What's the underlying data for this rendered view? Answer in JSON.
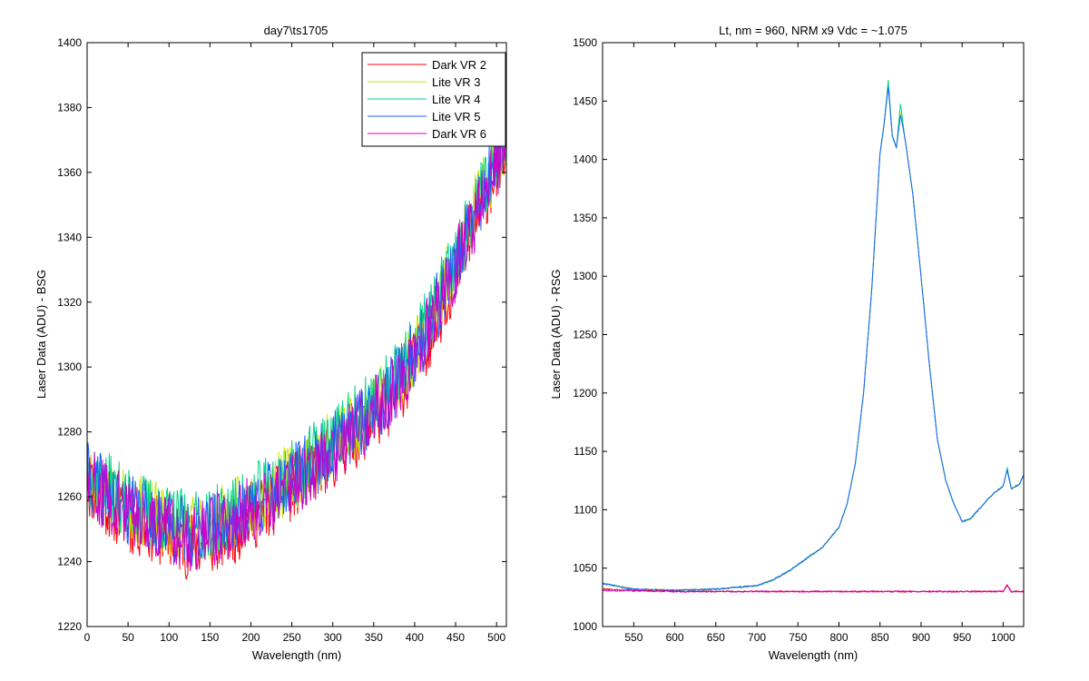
{
  "chart_data": [
    {
      "type": "line",
      "title": "day7\\ts1705",
      "xlabel": "Wavelength (nm)",
      "ylabel": "Laser Data (ADU) - BSG",
      "xlim": [
        0,
        512
      ],
      "ylim": [
        1220,
        1400
      ],
      "xticks": [
        0,
        50,
        100,
        150,
        200,
        250,
        300,
        350,
        400,
        450,
        500
      ],
      "yticks": [
        1220,
        1240,
        1260,
        1280,
        1300,
        1320,
        1340,
        1360,
        1380,
        1400
      ],
      "grid": false,
      "legend_position": "top-right",
      "series": [
        {
          "name": "Dark VR 2",
          "color": "#ff0000",
          "x": [
            0,
            25,
            50,
            75,
            100,
            125,
            150,
            175,
            200,
            225,
            250,
            275,
            300,
            325,
            350,
            375,
            400,
            425,
            450,
            475,
            500,
            512
          ],
          "y": [
            1264,
            1258,
            1253,
            1251,
            1248,
            1245,
            1246,
            1249,
            1254,
            1258,
            1263,
            1268,
            1273,
            1279,
            1284,
            1291,
            1301,
            1314,
            1329,
            1346,
            1362,
            1370
          ]
        },
        {
          "name": "Lite VR 3",
          "color": "#c8e600",
          "x": [
            0,
            25,
            50,
            75,
            100,
            125,
            150,
            175,
            200,
            225,
            250,
            275,
            300,
            325,
            350,
            375,
            400,
            425,
            450,
            475,
            500,
            512
          ],
          "y": [
            1267,
            1262,
            1257,
            1255,
            1252,
            1250,
            1251,
            1254,
            1258,
            1262,
            1266,
            1271,
            1276,
            1282,
            1288,
            1295,
            1305,
            1318,
            1333,
            1349,
            1364,
            1372
          ]
        },
        {
          "name": "Lite VR 4",
          "color": "#00d38a",
          "x": [
            0,
            25,
            50,
            75,
            100,
            125,
            150,
            175,
            200,
            225,
            250,
            275,
            300,
            325,
            350,
            375,
            400,
            425,
            450,
            475,
            500,
            512
          ],
          "y": [
            1268,
            1263,
            1258,
            1256,
            1253,
            1251,
            1252,
            1255,
            1259,
            1263,
            1267,
            1272,
            1277,
            1283,
            1289,
            1296,
            1306,
            1319,
            1334,
            1350,
            1365,
            1373
          ]
        },
        {
          "name": "Lite VR 5",
          "color": "#1e5fff",
          "x": [
            0,
            25,
            50,
            75,
            100,
            125,
            150,
            175,
            200,
            225,
            250,
            275,
            300,
            325,
            350,
            375,
            400,
            425,
            450,
            475,
            500,
            512
          ],
          "y": [
            1266,
            1261,
            1256,
            1254,
            1251,
            1249,
            1250,
            1253,
            1257,
            1261,
            1265,
            1270,
            1275,
            1281,
            1287,
            1294,
            1304,
            1317,
            1332,
            1348,
            1363,
            1371
          ]
        },
        {
          "name": "Dark VR 6",
          "color": "#cc00cc",
          "x": [
            0,
            25,
            50,
            75,
            100,
            125,
            150,
            175,
            200,
            225,
            250,
            275,
            300,
            325,
            350,
            375,
            400,
            425,
            450,
            475,
            500,
            512
          ],
          "y": [
            1265,
            1260,
            1255,
            1253,
            1250,
            1248,
            1249,
            1252,
            1256,
            1260,
            1264,
            1269,
            1274,
            1280,
            1286,
            1293,
            1303,
            1316,
            1331,
            1347,
            1362,
            1370
          ]
        }
      ]
    },
    {
      "type": "line",
      "title": "Lt, nm = 960, NRM x9 Vdc = ~1.075",
      "xlabel": "Wavelength (nm)",
      "ylabel": "Laser Data (ADU) - RSG",
      "xlim": [
        512,
        1025
      ],
      "ylim": [
        1000,
        1500
      ],
      "xticks": [
        550,
        600,
        650,
        700,
        750,
        800,
        850,
        900,
        950,
        1000
      ],
      "yticks": [
        1000,
        1050,
        1100,
        1150,
        1200,
        1250,
        1300,
        1350,
        1400,
        1450,
        1500
      ],
      "grid": false,
      "series": [
        {
          "color": "#c8e600",
          "x": [
            512,
            550,
            600,
            650,
            700,
            720,
            740,
            760,
            780,
            800,
            810,
            820,
            830,
            840,
            850,
            855,
            860,
            865,
            870,
            875,
            880,
            890,
            900,
            910,
            920,
            930,
            940,
            950,
            960,
            970,
            980,
            990,
            1000,
            1005,
            1010,
            1020,
            1025
          ],
          "y": [
            1037,
            1032,
            1031,
            1032,
            1035,
            1040,
            1048,
            1058,
            1068,
            1085,
            1105,
            1140,
            1200,
            1290,
            1405,
            1430,
            1465,
            1420,
            1410,
            1440,
            1420,
            1370,
            1300,
            1225,
            1160,
            1125,
            1105,
            1090,
            1092,
            1100,
            1108,
            1115,
            1120,
            1135,
            1118,
            1122,
            1130
          ]
        },
        {
          "color": "#00d38a",
          "x": [
            512,
            550,
            600,
            650,
            700,
            720,
            740,
            760,
            780,
            800,
            810,
            820,
            830,
            840,
            850,
            855,
            860,
            865,
            870,
            875,
            880,
            890,
            900,
            910,
            920,
            930,
            940,
            950,
            960,
            970,
            980,
            990,
            1000,
            1005,
            1010,
            1020,
            1025
          ],
          "y": [
            1037,
            1032,
            1031,
            1032,
            1035,
            1040,
            1048,
            1058,
            1068,
            1085,
            1105,
            1140,
            1200,
            1290,
            1405,
            1430,
            1468,
            1420,
            1410,
            1448,
            1420,
            1370,
            1300,
            1225,
            1160,
            1125,
            1105,
            1090,
            1092,
            1100,
            1108,
            1115,
            1120,
            1136,
            1118,
            1122,
            1130
          ]
        },
        {
          "color": "#1e5fff",
          "x": [
            512,
            550,
            600,
            650,
            700,
            720,
            740,
            760,
            780,
            800,
            810,
            820,
            830,
            840,
            850,
            855,
            860,
            865,
            870,
            875,
            880,
            890,
            900,
            910,
            920,
            930,
            940,
            950,
            960,
            970,
            980,
            990,
            1000,
            1005,
            1010,
            1020,
            1025
          ],
          "y": [
            1037,
            1032,
            1031,
            1032,
            1035,
            1040,
            1048,
            1058,
            1068,
            1085,
            1105,
            1140,
            1200,
            1290,
            1405,
            1430,
            1462,
            1420,
            1410,
            1438,
            1420,
            1370,
            1300,
            1225,
            1160,
            1125,
            1105,
            1090,
            1092,
            1100,
            1108,
            1115,
            1120,
            1134,
            1118,
            1122,
            1130
          ]
        },
        {
          "color": "#ff0000",
          "x": [
            512,
            600,
            700,
            800,
            900,
            1000,
            1005,
            1010,
            1025
          ],
          "y": [
            1032,
            1030,
            1030,
            1030,
            1030,
            1030,
            1036,
            1030,
            1030
          ]
        },
        {
          "color": "#cc00cc",
          "x": [
            512,
            600,
            700,
            800,
            900,
            1000,
            1005,
            1010,
            1025
          ],
          "y": [
            1031,
            1030,
            1030,
            1030,
            1030,
            1030,
            1035,
            1030,
            1030
          ]
        }
      ]
    }
  ]
}
